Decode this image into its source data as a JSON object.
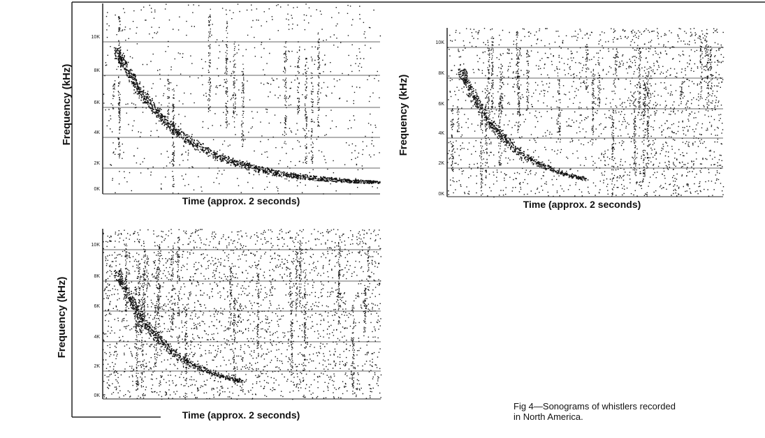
{
  "panels": [
    {
      "y_label": "Frequency (kHz)",
      "x_label": "Time (approx. 2 seconds)",
      "yticks": [
        "10K",
        "8K",
        "6K",
        "4K",
        "2K",
        "0K"
      ]
    },
    {
      "y_label": "Frequency (kHz)",
      "x_label": "Time (approx. 2 seconds)",
      "yticks": [
        "10K",
        "8K",
        "6K",
        "4K",
        "2K",
        "0K"
      ]
    },
    {
      "y_label": "Frequency (kHz)",
      "x_label": "Time (approx. 2 seconds)",
      "yticks": [
        "10K",
        "8K",
        "6K",
        "4K",
        "2K",
        "0K"
      ]
    }
  ],
  "caption": {
    "line1": "Fig 4—Sonograms of whistlers recorded",
    "line2": "in North America."
  }
}
